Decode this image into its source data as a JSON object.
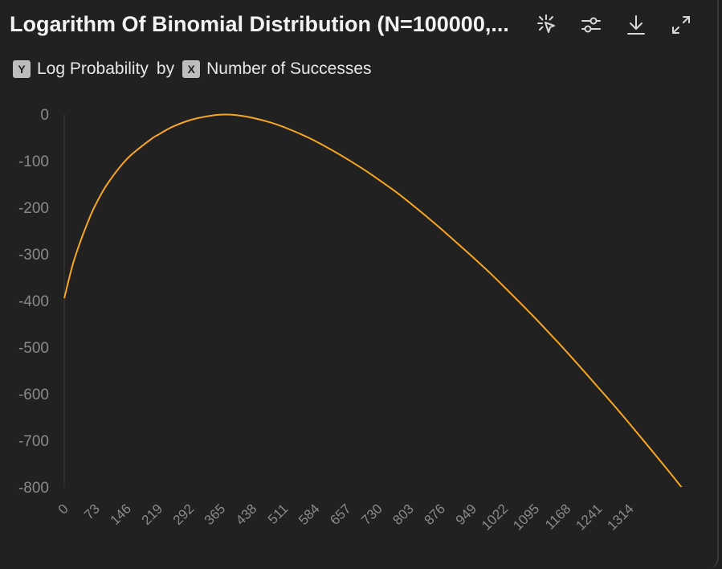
{
  "header": {
    "title": "Logarithm Of Binomial Distribution (N=100000,..."
  },
  "toolbar": {
    "icons": [
      "select-cursor-icon",
      "sliders-icon",
      "download-icon",
      "expand-icon"
    ]
  },
  "subtitle": {
    "y_chip": "Y",
    "y_label": "Log Probability",
    "by": "by",
    "x_chip": "X",
    "x_label": "Number of Successes"
  },
  "colors": {
    "background": "#212121",
    "line": "#f5a623",
    "grid": "#3a3a3a",
    "tick_text": "#8a8a8a"
  },
  "chart_data": {
    "type": "line",
    "title": "Logarithm Of Binomial Distribution (N=100000,...",
    "xlabel": "Number of Successes",
    "ylabel": "Log Probability",
    "xlim": [
      0,
      1460
    ],
    "ylim": [
      -800,
      0
    ],
    "grid": false,
    "yticks": [
      0,
      -100,
      -200,
      -300,
      -400,
      -500,
      -600,
      -700,
      -800
    ],
    "xticks": [
      0,
      73,
      146,
      219,
      292,
      365,
      438,
      511,
      584,
      657,
      730,
      803,
      876,
      949,
      1022,
      1095,
      1168,
      1241,
      1314
    ],
    "series": [
      {
        "name": "",
        "x": [
          0,
          20,
          40,
          60,
          73,
          100,
          146,
          200,
          219,
          250,
          292,
          330,
          365,
          400,
          438,
          480,
          511,
          550,
          584,
          620,
          657,
          700,
          730,
          770,
          803,
          840,
          876,
          910,
          949,
          990,
          1022,
          1060,
          1095,
          1130,
          1168,
          1200,
          1241,
          1280,
          1314,
          1350,
          1390,
          1420,
          1460
        ],
        "y": [
          -395,
          -322,
          -267,
          -220,
          -194,
          -150,
          -96,
          -55,
          -44,
          -28,
          -13,
          -5,
          -1,
          -2,
          -8,
          -18,
          -28,
          -43,
          -58,
          -76,
          -96,
          -121,
          -140,
          -166,
          -190,
          -218,
          -246,
          -274,
          -306,
          -341,
          -370,
          -405,
          -438,
          -472,
          -510,
          -543,
          -586,
          -627,
          -664,
          -704,
          -749,
          -783,
          -830
        ]
      }
    ]
  }
}
